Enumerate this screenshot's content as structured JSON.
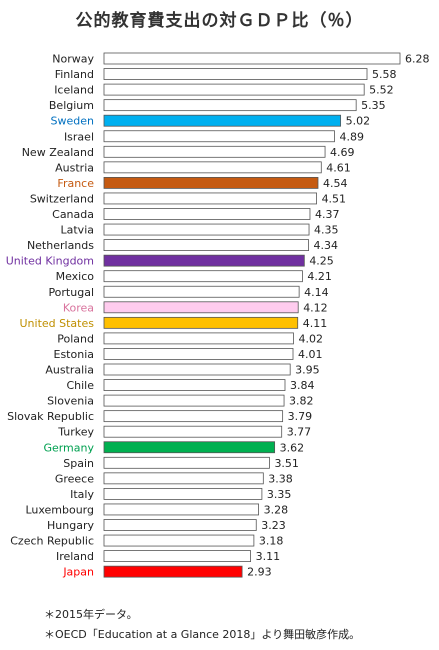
{
  "chart_data": {
    "type": "bar",
    "orientation": "horizontal",
    "title": "公的教育費支出の対ＧＤＰ比（％）",
    "categories": [
      "Norway",
      "Finland",
      "Iceland",
      "Belgium",
      "Sweden",
      "Israel",
      "New Zealand",
      "Austria",
      "France",
      "Switzerland",
      "Canada",
      "Latvia",
      "Netherlands",
      "United Kingdom",
      "Mexico",
      "Portugal",
      "Korea",
      "United States",
      "Poland",
      "Estonia",
      "Australia",
      "Chile",
      "Slovenia",
      "Slovak Republic",
      "Turkey",
      "Germany",
      "Spain",
      "Greece",
      "Italy",
      "Luxembourg",
      "Hungary",
      "Czech Republic",
      "Ireland",
      "Japan"
    ],
    "values": [
      6.28,
      5.58,
      5.52,
      5.35,
      5.02,
      4.89,
      4.69,
      4.61,
      4.54,
      4.51,
      4.37,
      4.35,
      4.34,
      4.25,
      4.21,
      4.14,
      4.12,
      4.11,
      4.02,
      4.01,
      3.95,
      3.84,
      3.82,
      3.79,
      3.77,
      3.62,
      3.51,
      3.38,
      3.35,
      3.28,
      3.23,
      3.18,
      3.11,
      2.93
    ],
    "value_labels": [
      "6.28",
      "5.58",
      "5.52",
      "5.35",
      "5.02",
      "4.89",
      "4.69",
      "4.61",
      "4.54",
      "4.51",
      "4.37",
      "4.35",
      "4.34",
      "4.25",
      "4.21",
      "4.14",
      "4.12",
      "4.11",
      "4.02",
      "4.01",
      "3.95",
      "3.84",
      "3.82",
      "3.79",
      "3.77",
      "3.62",
      "3.51",
      "3.38",
      "3.35",
      "3.28",
      "3.23",
      "3.18",
      "3.11",
      "2.93"
    ],
    "xlim": [
      0,
      6.28
    ],
    "default_bar_color": "#ffffff",
    "highlight_colors": {
      "Sweden": "#00b0f0",
      "France": "#c55a11",
      "United Kingdom": "#7030a0",
      "Korea": "#ffccee",
      "United States": "#ffc000",
      "Germany": "#00b050",
      "Japan": "#ff0000"
    },
    "label_colors": {
      "Sweden": "#0070c0",
      "France": "#c55a11",
      "United Kingdom": "#7030a0",
      "Korea": "#d9749e",
      "United States": "#bf8f00",
      "Germany": "#00a050",
      "Japan": "#ff0000"
    },
    "grid": false,
    "legend": "none"
  },
  "notes": [
    "＊2015年データ。",
    "＊OECD「Education at a Glance 2018」より舞田敏彦作成。"
  ]
}
